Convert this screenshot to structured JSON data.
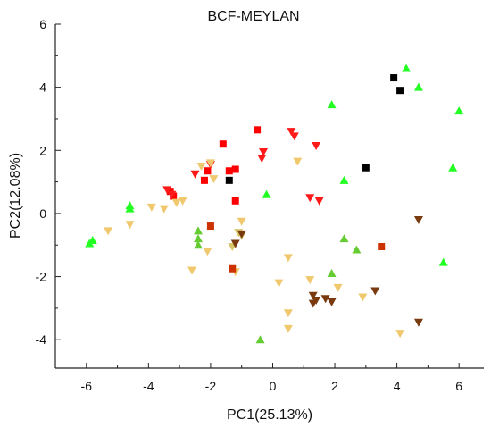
{
  "chart_data": {
    "type": "scatter",
    "title": "BCF-MEYLAN",
    "xlabel": "PC1(25.13%)",
    "ylabel": "PC2(12.08%)",
    "xlim": [
      -7,
      6.8
    ],
    "ylim": [
      -4.9,
      6
    ],
    "x_ticks": [
      -6,
      -4,
      -2,
      0,
      2,
      4,
      6
    ],
    "y_ticks": [
      -4,
      -2,
      0,
      2,
      4,
      6
    ],
    "x_tick_labels": [
      "-6",
      "-4",
      "-2",
      "0",
      "2",
      "4",
      "6"
    ],
    "y_tick_labels": [
      "-4",
      "-2",
      "0",
      "2",
      "4",
      "6"
    ],
    "grid": false,
    "legend": "none",
    "series": [
      {
        "marker": "square",
        "color": "#000000",
        "points": [
          [
            3.9,
            4.3
          ],
          [
            4.1,
            3.9
          ],
          [
            3.0,
            1.45
          ],
          [
            -1.4,
            1.05
          ]
        ]
      },
      {
        "marker": "square",
        "color": "#ff0000",
        "points": [
          [
            -0.5,
            2.65
          ],
          [
            -1.6,
            2.2
          ],
          [
            -1.2,
            1.4
          ],
          [
            -1.4,
            1.35
          ],
          [
            -2.1,
            1.35
          ],
          [
            -2.2,
            1.05
          ],
          [
            -1.2,
            0.4
          ],
          [
            -3.3,
            0.7
          ],
          [
            -3.2,
            0.55
          ]
        ]
      },
      {
        "marker": "triangle-down",
        "color": "#ff1a1a",
        "points": [
          [
            0.6,
            2.6
          ],
          [
            0.7,
            2.45
          ],
          [
            1.4,
            2.15
          ],
          [
            -0.3,
            1.95
          ],
          [
            -0.35,
            1.75
          ],
          [
            -2.0,
            1.55
          ],
          [
            -2.5,
            1.25
          ],
          [
            -3.4,
            0.75
          ],
          [
            -3.25,
            0.6
          ],
          [
            1.2,
            0.5
          ],
          [
            1.5,
            0.4
          ]
        ]
      },
      {
        "marker": "triangle-up",
        "color": "#22ff22",
        "points": [
          [
            4.3,
            4.6
          ],
          [
            4.7,
            4.0
          ],
          [
            1.9,
            3.45
          ],
          [
            6.0,
            3.25
          ],
          [
            5.8,
            1.45
          ],
          [
            2.3,
            1.05
          ],
          [
            -0.2,
            0.6
          ],
          [
            -4.6,
            0.25
          ],
          [
            -4.6,
            0.15
          ],
          [
            -5.8,
            -0.85
          ],
          [
            -5.9,
            -0.95
          ],
          [
            5.5,
            -1.55
          ]
        ]
      },
      {
        "marker": "triangle-up",
        "color": "#66cc33",
        "points": [
          [
            -2.4,
            -0.55
          ],
          [
            -2.4,
            -0.8
          ],
          [
            -2.4,
            -1.0
          ],
          [
            2.3,
            -0.8
          ],
          [
            2.7,
            -1.15
          ],
          [
            1.9,
            -1.9
          ],
          [
            -0.4,
            -4.0
          ]
        ]
      },
      {
        "marker": "triangle-down",
        "color": "#f0c86e",
        "points": [
          [
            0.8,
            1.65
          ],
          [
            -2.0,
            1.6
          ],
          [
            -2.3,
            1.5
          ],
          [
            -1.9,
            1.1
          ],
          [
            -2.9,
            0.4
          ],
          [
            -3.1,
            0.35
          ],
          [
            -3.5,
            0.15
          ],
          [
            -3.9,
            0.2
          ],
          [
            -4.6,
            -0.35
          ],
          [
            -5.3,
            -0.55
          ],
          [
            -1.0,
            -0.25
          ],
          [
            -2.1,
            -1.2
          ],
          [
            -2.6,
            -1.8
          ],
          [
            -1.2,
            -1.85
          ],
          [
            0.5,
            -1.4
          ],
          [
            0.2,
            -2.2
          ],
          [
            1.2,
            -2.1
          ],
          [
            2.1,
            -2.35
          ],
          [
            2.9,
            -2.65
          ],
          [
            0.5,
            -3.15
          ],
          [
            0.5,
            -3.65
          ],
          [
            4.1,
            -3.8
          ]
        ]
      },
      {
        "marker": "triangle-down",
        "color": "#d9c86a",
        "points": [
          [
            -1.1,
            -0.6
          ],
          [
            -1.0,
            -0.7
          ],
          [
            -1.3,
            -1.05
          ]
        ]
      },
      {
        "marker": "square",
        "color": "#cc3300",
        "points": [
          [
            -2.0,
            -0.4
          ],
          [
            -1.3,
            -1.75
          ],
          [
            3.5,
            -1.05
          ]
        ]
      },
      {
        "marker": "triangle-down",
        "color": "#7a3a0f",
        "points": [
          [
            -1.0,
            -0.65
          ],
          [
            -1.2,
            -0.95
          ],
          [
            1.3,
            -2.6
          ],
          [
            1.4,
            -2.75
          ],
          [
            1.7,
            -2.7
          ],
          [
            1.3,
            -2.85
          ],
          [
            1.9,
            -2.8
          ],
          [
            3.3,
            -2.45
          ],
          [
            4.7,
            -0.2
          ],
          [
            4.7,
            -3.45
          ]
        ]
      }
    ]
  }
}
